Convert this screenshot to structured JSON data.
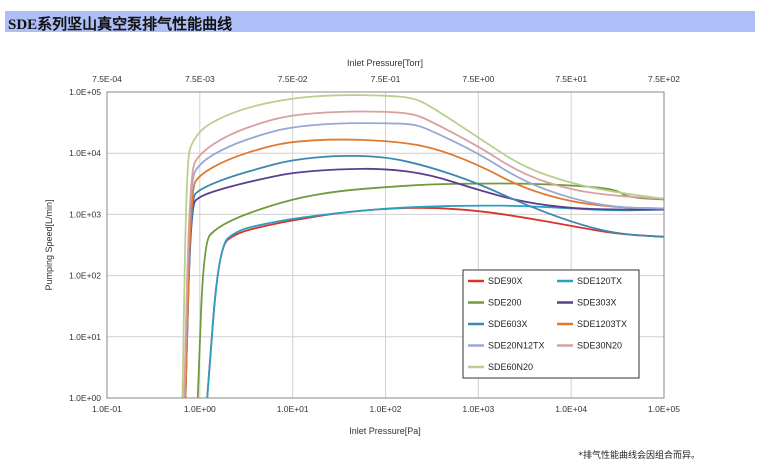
{
  "header": {
    "title": "SDE系列坚山真空泵排气性能曲线"
  },
  "footnote": "*排气性能曲线会因组合而异。",
  "chart_data": {
    "type": "line",
    "x_scale": "log",
    "y_scale": "log",
    "xlabel": "Inlet Pressure[Pa]",
    "x2label": "Inlet Pressure[Torr]",
    "ylabel": "Pumping Speed[L/min]",
    "xlim": [
      0.1,
      100000
    ],
    "ylim": [
      1,
      100000
    ],
    "grid": true,
    "legend_position": "bottom-right",
    "x_ticks": [
      0.1,
      1,
      10,
      100,
      1000,
      10000,
      100000
    ],
    "x_tick_labels": [
      "1.0E-01",
      "1.0E+00",
      "1.0E+01",
      "1.0E+02",
      "1.0E+03",
      "1.0E+04",
      "1.0E+05"
    ],
    "x2_tick_labels": [
      "7.5E-04",
      "7.5E-03",
      "7.5E-02",
      "7.5E-01",
      "7.5E+00",
      "7.5E+01",
      "7.5E+02"
    ],
    "y_ticks": [
      1,
      10,
      100,
      1000,
      10000,
      100000
    ],
    "y_tick_labels": [
      "1.0E+00",
      "1.0E+01",
      "1.0E+02",
      "1.0E+03",
      "1.0E+04",
      "1.0E+05"
    ],
    "series": [
      {
        "name": "SDE90X",
        "color": "#d9342b",
        "x": [
          1.2,
          1.6,
          2.5,
          5,
          10,
          30,
          100,
          300,
          1000,
          3000,
          10000,
          30000,
          100000
        ],
        "y": [
          1,
          300,
          500,
          650,
          800,
          1050,
          1250,
          1300,
          1150,
          900,
          650,
          480,
          430
        ]
      },
      {
        "name": "SDE120TX",
        "color": "#2a9fc4",
        "x": [
          1.2,
          1.6,
          2.5,
          5,
          10,
          30,
          100,
          300,
          1000,
          3000,
          10000,
          30000,
          100000
        ],
        "y": [
          1,
          300,
          550,
          700,
          850,
          1050,
          1250,
          1350,
          1400,
          1380,
          1250,
          1150,
          1200
        ]
      },
      {
        "name": "SDE200",
        "color": "#6f9b3c",
        "x": [
          0.95,
          1.1,
          1.5,
          3,
          10,
          30,
          100,
          300,
          1000,
          3000,
          10000,
          30000,
          40000,
          100000
        ],
        "y": [
          1,
          350,
          600,
          1000,
          1800,
          2400,
          2800,
          3100,
          3200,
          3200,
          3000,
          2600,
          1900,
          1750
        ]
      },
      {
        "name": "SDE303X",
        "color": "#5b3f8f",
        "x": [
          0.7,
          0.8,
          1,
          2,
          5,
          10,
          30,
          100,
          300,
          1000,
          3000,
          10000,
          30000,
          100000
        ],
        "y": [
          1,
          1400,
          2000,
          2800,
          3900,
          4800,
          5500,
          5600,
          4500,
          2500,
          1600,
          1250,
          1200,
          1200
        ]
      },
      {
        "name": "SDE603X",
        "color": "#3d87b0",
        "x": [
          0.7,
          0.8,
          1,
          2,
          5,
          10,
          30,
          100,
          300,
          1000,
          3000,
          10000,
          30000,
          100000
        ],
        "y": [
          1,
          1800,
          2600,
          4000,
          6000,
          7800,
          9200,
          8800,
          6000,
          3200,
          1500,
          750,
          480,
          430
        ]
      },
      {
        "name": "SDE1203TX",
        "color": "#e07a30",
        "x": [
          0.7,
          0.8,
          1,
          2,
          5,
          10,
          30,
          100,
          300,
          1000,
          3000,
          10000,
          30000,
          100000
        ],
        "y": [
          1,
          2600,
          4500,
          8000,
          12500,
          15500,
          17000,
          16000,
          13000,
          6500,
          2700,
          1600,
          1300,
          1250
        ]
      },
      {
        "name": "SDE20N12TX",
        "color": "#97a8d6",
        "x": [
          0.68,
          0.78,
          1,
          2,
          5,
          10,
          30,
          100,
          200,
          300,
          1000,
          3000,
          10000,
          30000,
          100000
        ],
        "y": [
          1,
          3500,
          7000,
          13000,
          21000,
          27000,
          31000,
          31000,
          30000,
          24000,
          10000,
          3500,
          1800,
          1300,
          1250
        ]
      },
      {
        "name": "SDE30N20",
        "color": "#d9a0a0",
        "x": [
          0.68,
          0.78,
          1,
          2,
          5,
          10,
          30,
          100,
          200,
          300,
          1000,
          3000,
          10000,
          30000,
          100000
        ],
        "y": [
          1,
          5000,
          10000,
          20000,
          33000,
          42000,
          48000,
          48000,
          44000,
          34000,
          13000,
          4500,
          2500,
          2000,
          1800
        ]
      },
      {
        "name": "SDE60N20",
        "color": "#b9cf90",
        "x": [
          0.65,
          0.72,
          0.85,
          1.2,
          3,
          10,
          30,
          100,
          200,
          300,
          1000,
          3000,
          10000,
          30000,
          100000
        ],
        "y": [
          1,
          8000,
          17000,
          30000,
          55000,
          80000,
          90000,
          88000,
          80000,
          60000,
          18000,
          6000,
          3200,
          2300,
          1800
        ]
      }
    ]
  }
}
